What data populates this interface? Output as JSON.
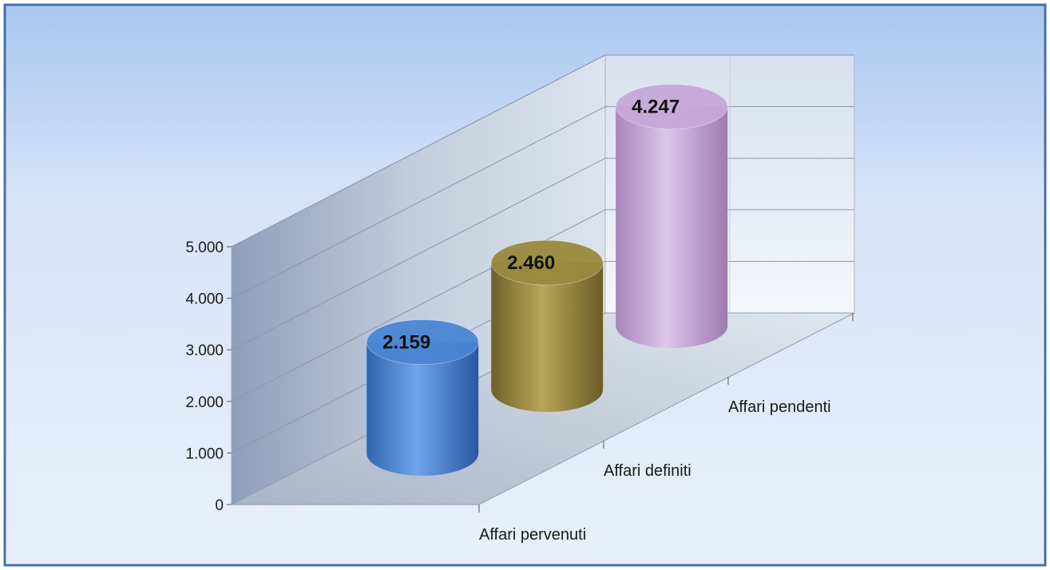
{
  "chart_data": {
    "type": "bar",
    "style": "3d-cylinder",
    "title": "",
    "xlabel": "",
    "ylabel": "",
    "categories": [
      "Affari pervenuti",
      "Affari definiti",
      "Affari pendenti"
    ],
    "values": [
      2159,
      2460,
      4247
    ],
    "value_labels": [
      "2.159",
      "2.460",
      "4.247"
    ],
    "ylim": [
      0,
      5000
    ],
    "yticks": [
      0,
      1000,
      2000,
      3000,
      4000,
      5000
    ],
    "ytick_labels": [
      "0",
      "1.000",
      "2.000",
      "3.000",
      "4.000",
      "5.000"
    ],
    "colors": [
      "#4a86d4",
      "#9a8a3e",
      "#c8a8d8"
    ],
    "grid": true,
    "legend": "none",
    "background": "#c9dbf5"
  }
}
